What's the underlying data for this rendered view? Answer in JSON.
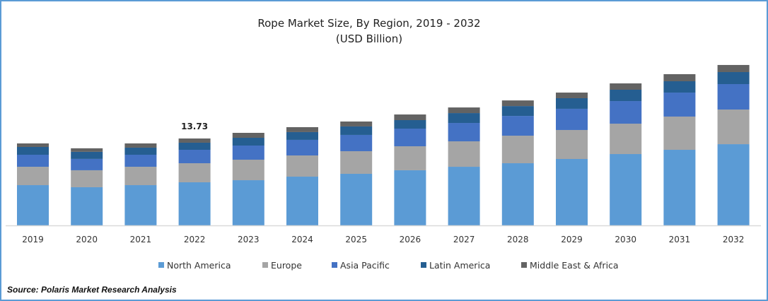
{
  "chart_data": {
    "type": "bar",
    "stacked": true,
    "title": "Rope Market Size, By Region, 2019 - 2032",
    "subtitle": "(USD Billion)",
    "xlabel": "",
    "ylabel": "",
    "categories": [
      "2019",
      "2020",
      "2021",
      "2022",
      "2023",
      "2024",
      "2025",
      "2026",
      "2027",
      "2028",
      "2029",
      "2030",
      "2031",
      "2032"
    ],
    "series": [
      {
        "name": "North America",
        "color": "#5b9bd5",
        "values": [
          6.36,
          6.03,
          6.36,
          6.81,
          7.14,
          7.7,
          8.15,
          8.71,
          9.26,
          9.82,
          10.49,
          11.27,
          11.94,
          12.83
        ]
      },
      {
        "name": "Europe",
        "color": "#a5a5a5",
        "values": [
          2.9,
          2.68,
          2.9,
          3.01,
          3.24,
          3.35,
          3.57,
          3.79,
          4.02,
          4.35,
          4.58,
          4.8,
          5.25,
          5.47
        ]
      },
      {
        "name": "Asia Pacific",
        "color": "#4472c4",
        "values": [
          1.9,
          1.79,
          1.9,
          2.12,
          2.23,
          2.46,
          2.57,
          2.79,
          2.9,
          3.12,
          3.35,
          3.57,
          3.79,
          4.02
        ]
      },
      {
        "name": "Latin America",
        "color": "#255e91",
        "values": [
          1.23,
          1.12,
          1.12,
          1.12,
          1.23,
          1.23,
          1.34,
          1.34,
          1.56,
          1.56,
          1.67,
          1.79,
          1.79,
          1.9
        ]
      },
      {
        "name": "Middle East & Africa",
        "color": "#636363",
        "values": [
          0.56,
          0.56,
          0.67,
          0.67,
          0.78,
          0.78,
          0.78,
          0.89,
          0.89,
          0.89,
          0.89,
          1.0,
          1.12,
          1.12
        ]
      }
    ],
    "annotations": [
      {
        "category": "2022",
        "text": "13.73"
      }
    ],
    "ylim": [
      0,
      25
    ],
    "grid": false,
    "legend": "bottom"
  },
  "source": "Source: Polaris Market Research Analysis",
  "colors": {
    "border": "#5b9bd5",
    "axis": "#d9d9d9"
  }
}
